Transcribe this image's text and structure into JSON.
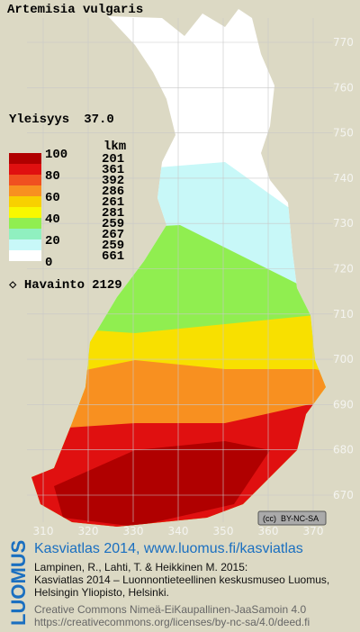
{
  "title": "Artemisia vulgaris",
  "frequency": {
    "label": "Yleisyys",
    "value": "37.0"
  },
  "legend": {
    "scale": [
      100,
      80,
      60,
      40,
      20,
      0
    ],
    "count_header": "lkm",
    "counts": [
      201,
      361,
      392,
      286,
      261,
      281,
      259,
      267,
      259,
      661
    ],
    "colors": [
      "#b00000",
      "#e01010",
      "#f05020",
      "#f89020",
      "#f8d000",
      "#f8f800",
      "#90ee50",
      "#90f0c0",
      "#c8f8f8",
      "#ffffff"
    ]
  },
  "observations": {
    "label": "Havainto",
    "value": 2129
  },
  "y_axis": [
    770,
    760,
    750,
    740,
    730,
    720,
    710,
    700,
    690,
    680,
    670
  ],
  "x_axis": [
    310,
    320,
    330,
    340,
    350,
    360,
    370
  ],
  "license_badge": {
    "icon": "(cc)",
    "text": "BY-NC-SA"
  },
  "credits": {
    "logo": "LUOMUS",
    "link": "Kasviatlas 2014, www.luomus.fi/kasviatlas",
    "citation": [
      "Lampinen, R., Lahti, T. & Heikkinen M. 2015:",
      "Kasviatlas 2014 – Luonnontieteellinen keskusmuseo Luomus,",
      "Helsingin Yliopisto, Helsinki."
    ],
    "license": [
      "Creative Commons Nimeä-EiKaupallinen-JaaSamoin 4.0",
      "https://creativecommons.org/licenses/by-nc-sa/4.0/deed.fi"
    ]
  }
}
